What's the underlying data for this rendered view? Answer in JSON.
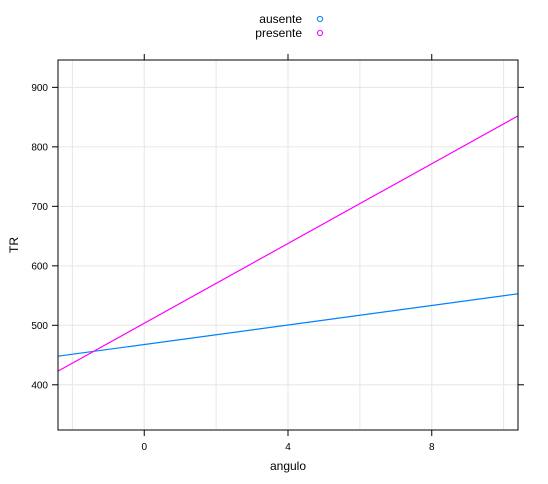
{
  "chart_data": {
    "type": "line",
    "title": "",
    "xlabel": "angulo",
    "ylabel": "TR",
    "xlim": [
      -2.4,
      10.4
    ],
    "ylim": [
      324,
      946
    ],
    "x_ticks": [
      0,
      4,
      8
    ],
    "x_tick_labels": [
      "0",
      "4",
      "8"
    ],
    "y_ticks": [
      400,
      500,
      600,
      700,
      800,
      900
    ],
    "y_tick_labels": [
      "400",
      "500",
      "600",
      "700",
      "800",
      "900"
    ],
    "x_minor_grid": [
      -2,
      2,
      6,
      10
    ],
    "grid": true,
    "legend_position": "top-center",
    "series": [
      {
        "name": "ausente",
        "color": "#0080ff",
        "x": [
          -2.4,
          10.4
        ],
        "y": [
          448,
          553
        ]
      },
      {
        "name": "presente",
        "color": "#ff00ff",
        "x": [
          -2.4,
          10.4
        ],
        "y": [
          423,
          852
        ]
      }
    ]
  }
}
